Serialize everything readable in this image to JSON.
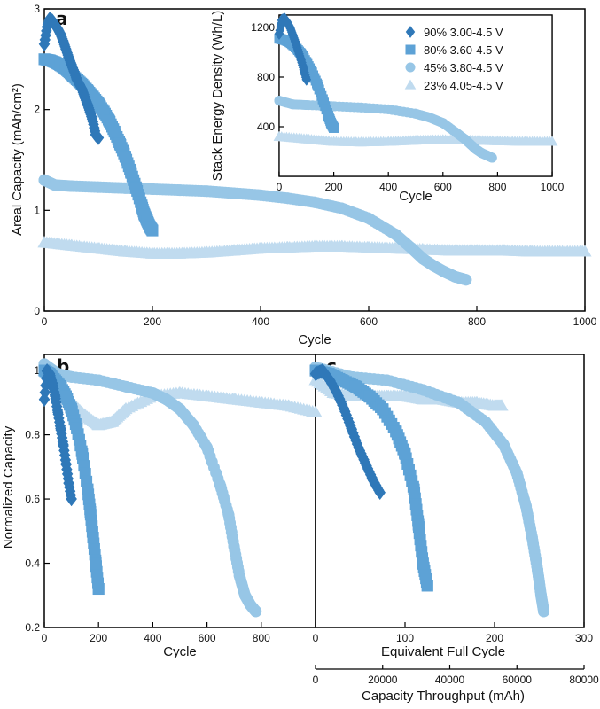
{
  "chart_data": [
    {
      "id": "a",
      "type": "scatter",
      "panel_label": "a",
      "xlabel": "Cycle",
      "ylabel": "Areal Capacity (mAh/cm²)",
      "xlim": [
        0,
        1000
      ],
      "ylim": [
        0,
        3
      ],
      "xticks": [
        0,
        200,
        400,
        600,
        800,
        1000
      ],
      "yticks": [
        0,
        1,
        2,
        3
      ],
      "series": [
        {
          "name": "90% 3.00-4.5 V",
          "color": "#2f78b8",
          "marker": "diamond",
          "x": [
            0,
            5,
            10,
            15,
            20,
            25,
            30,
            35,
            40,
            45,
            50,
            55,
            60,
            65,
            70,
            75,
            80,
            85,
            90,
            95,
            100
          ],
          "y": [
            2.65,
            2.82,
            2.9,
            2.88,
            2.84,
            2.8,
            2.75,
            2.68,
            2.6,
            2.52,
            2.45,
            2.38,
            2.3,
            2.25,
            2.2,
            2.12,
            2.05,
            1.97,
            1.88,
            1.75,
            1.72
          ]
        },
        {
          "name": "80% 3.60-4.5 V",
          "color": "#5da2d6",
          "marker": "square",
          "x": [
            0,
            10,
            20,
            30,
            40,
            50,
            60,
            70,
            80,
            90,
            100,
            110,
            120,
            130,
            140,
            150,
            160,
            170,
            180,
            185,
            190,
            195,
            200
          ],
          "y": [
            2.5,
            2.49,
            2.47,
            2.44,
            2.4,
            2.35,
            2.3,
            2.25,
            2.19,
            2.13,
            2.06,
            1.98,
            1.89,
            1.78,
            1.66,
            1.53,
            1.38,
            1.22,
            1.05,
            0.96,
            0.9,
            0.84,
            0.8
          ]
        },
        {
          "name": "45% 3.80-4.5 V",
          "color": "#97c6e6",
          "marker": "circle",
          "x": [
            0,
            20,
            50,
            100,
            150,
            200,
            250,
            300,
            350,
            400,
            450,
            500,
            550,
            600,
            650,
            680,
            700,
            720,
            740,
            760,
            780
          ],
          "y": [
            1.3,
            1.25,
            1.24,
            1.23,
            1.22,
            1.21,
            1.2,
            1.19,
            1.17,
            1.15,
            1.12,
            1.08,
            1.02,
            0.92,
            0.76,
            0.62,
            0.52,
            0.45,
            0.39,
            0.34,
            0.31
          ]
        },
        {
          "name": "23% 4.05-4.5 V",
          "color": "#c0dbef",
          "marker": "triangle",
          "x": [
            0,
            50,
            100,
            150,
            200,
            250,
            300,
            350,
            400,
            450,
            500,
            550,
            600,
            650,
            700,
            750,
            800,
            850,
            900,
            950,
            1000
          ],
          "y": [
            0.68,
            0.65,
            0.62,
            0.59,
            0.57,
            0.57,
            0.58,
            0.6,
            0.62,
            0.63,
            0.64,
            0.64,
            0.63,
            0.62,
            0.61,
            0.6,
            0.6,
            0.6,
            0.59,
            0.59,
            0.59
          ]
        }
      ]
    },
    {
      "id": "inset",
      "type": "scatter",
      "xlabel": "Cycle",
      "ylabel": "Stack Energy Density (Wh/L)",
      "xlim": [
        0,
        1000
      ],
      "ylim": [
        0,
        1300
      ],
      "xticks": [
        0,
        200,
        400,
        600,
        800,
        1000
      ],
      "yticks": [
        400,
        800,
        1200
      ],
      "legend_position": "top-right",
      "series": [
        {
          "name": "90% 3.00-4.5 V",
          "color": "#2f78b8",
          "marker": "diamond",
          "x": [
            0,
            10,
            20,
            30,
            40,
            50,
            60,
            70,
            80,
            90,
            100
          ],
          "y": [
            1150,
            1260,
            1270,
            1240,
            1200,
            1140,
            1080,
            1010,
            940,
            860,
            780
          ]
        },
        {
          "name": "80% 3.60-4.5 V",
          "color": "#5da2d6",
          "marker": "square",
          "x": [
            0,
            20,
            40,
            60,
            80,
            100,
            120,
            140,
            160,
            180,
            190,
            200
          ],
          "y": [
            1110,
            1100,
            1080,
            1040,
            990,
            920,
            840,
            740,
            620,
            490,
            430,
            390
          ]
        },
        {
          "name": "45% 3.80-4.5 V",
          "color": "#97c6e6",
          "marker": "circle",
          "x": [
            0,
            50,
            100,
            200,
            300,
            400,
            500,
            550,
            600,
            650,
            680,
            700,
            720,
            740,
            760,
            780
          ],
          "y": [
            610,
            580,
            575,
            565,
            555,
            540,
            505,
            475,
            430,
            350,
            300,
            260,
            220,
            190,
            170,
            150
          ]
        },
        {
          "name": "23% 4.05-4.5 V",
          "color": "#c0dbef",
          "marker": "triangle",
          "x": [
            0,
            100,
            200,
            300,
            400,
            500,
            600,
            700,
            800,
            900,
            1000
          ],
          "y": [
            320,
            300,
            280,
            275,
            280,
            290,
            295,
            290,
            285,
            280,
            280
          ]
        }
      ]
    },
    {
      "id": "b",
      "type": "scatter",
      "panel_label": "b",
      "xlabel": "Cycle",
      "ylabel": "Normalized Capacity",
      "xlim": [
        0,
        1000
      ],
      "ylim": [
        0.2,
        1.05
      ],
      "xticks": [
        0,
        200,
        400,
        600,
        800
      ],
      "yticks": [
        0.2,
        0.4,
        0.6,
        0.8,
        1
      ],
      "series": [
        {
          "name": "90% 3.00-4.5 V",
          "color": "#2f78b8",
          "marker": "diamond",
          "x": [
            0,
            10,
            20,
            30,
            40,
            50,
            60,
            70,
            80,
            90,
            100
          ],
          "y": [
            0.91,
            1.0,
            0.99,
            0.96,
            0.92,
            0.87,
            0.82,
            0.77,
            0.71,
            0.65,
            0.6
          ]
        },
        {
          "name": "80% 3.60-4.5 V",
          "color": "#5da2d6",
          "marker": "square",
          "x": [
            0,
            20,
            40,
            60,
            80,
            100,
            120,
            140,
            160,
            170,
            180,
            190,
            200
          ],
          "y": [
            1.0,
            0.99,
            0.97,
            0.95,
            0.92,
            0.88,
            0.82,
            0.74,
            0.63,
            0.56,
            0.48,
            0.4,
            0.32
          ]
        },
        {
          "name": "45% 3.80-4.5 V",
          "color": "#97c6e6",
          "marker": "circle",
          "x": [
            0,
            50,
            100,
            200,
            300,
            400,
            450,
            500,
            550,
            600,
            650,
            680,
            700,
            720,
            740,
            760,
            780
          ],
          "y": [
            1.02,
            0.99,
            0.98,
            0.97,
            0.95,
            0.93,
            0.91,
            0.88,
            0.83,
            0.76,
            0.64,
            0.55,
            0.45,
            0.36,
            0.3,
            0.27,
            0.25
          ]
        },
        {
          "name": "23% 4.05-4.5 V",
          "color": "#c0dbef",
          "marker": "triangle",
          "x": [
            0,
            50,
            100,
            150,
            200,
            250,
            300,
            400,
            500,
            600,
            700,
            800,
            900,
            1000
          ],
          "y": [
            1.0,
            0.95,
            0.9,
            0.86,
            0.83,
            0.84,
            0.88,
            0.92,
            0.93,
            0.92,
            0.91,
            0.9,
            0.89,
            0.87
          ]
        }
      ]
    },
    {
      "id": "c",
      "type": "scatter",
      "panel_label": "c",
      "xlabel": "Equivalent Full Cycle",
      "ylabel": "",
      "xlim": [
        0,
        300
      ],
      "ylim": [
        0.2,
        1.05
      ],
      "xticks": [
        0,
        100,
        200,
        300
      ],
      "yticks": [],
      "secondary_x_axis": {
        "label": "Capacity Throughput (mAh)",
        "lim": [
          0,
          80000
        ],
        "ticks": [
          0,
          20000,
          40000,
          60000,
          80000
        ]
      },
      "series": [
        {
          "name": "90% 3.00-4.5 V",
          "color": "#2f78b8",
          "marker": "diamond",
          "x": [
            0,
            8,
            16,
            24,
            32,
            40,
            48,
            56,
            64,
            72
          ],
          "y": [
            0.99,
            1.0,
            0.97,
            0.93,
            0.88,
            0.82,
            0.76,
            0.71,
            0.66,
            0.62
          ]
        },
        {
          "name": "80% 3.60-4.5 V",
          "color": "#5da2d6",
          "marker": "square",
          "x": [
            0,
            15,
            30,
            45,
            60,
            75,
            90,
            100,
            110,
            115,
            120,
            125
          ],
          "y": [
            1.0,
            0.99,
            0.97,
            0.95,
            0.92,
            0.88,
            0.81,
            0.74,
            0.63,
            0.52,
            0.4,
            0.33
          ]
        },
        {
          "name": "45% 3.80-4.5 V",
          "color": "#97c6e6",
          "marker": "circle",
          "x": [
            0,
            40,
            80,
            120,
            160,
            190,
            210,
            225,
            235,
            242,
            248,
            252,
            255
          ],
          "y": [
            1.01,
            0.98,
            0.97,
            0.94,
            0.9,
            0.84,
            0.77,
            0.68,
            0.58,
            0.48,
            0.38,
            0.3,
            0.25
          ]
        },
        {
          "name": "23% 4.05-4.5 V",
          "color": "#c0dbef",
          "marker": "triangle",
          "x": [
            0,
            20,
            40,
            60,
            80,
            100,
            120,
            140,
            160,
            180,
            200,
            208
          ],
          "y": [
            0.97,
            0.93,
            0.92,
            0.92,
            0.92,
            0.92,
            0.91,
            0.91,
            0.9,
            0.9,
            0.89,
            0.89
          ]
        }
      ]
    }
  ]
}
